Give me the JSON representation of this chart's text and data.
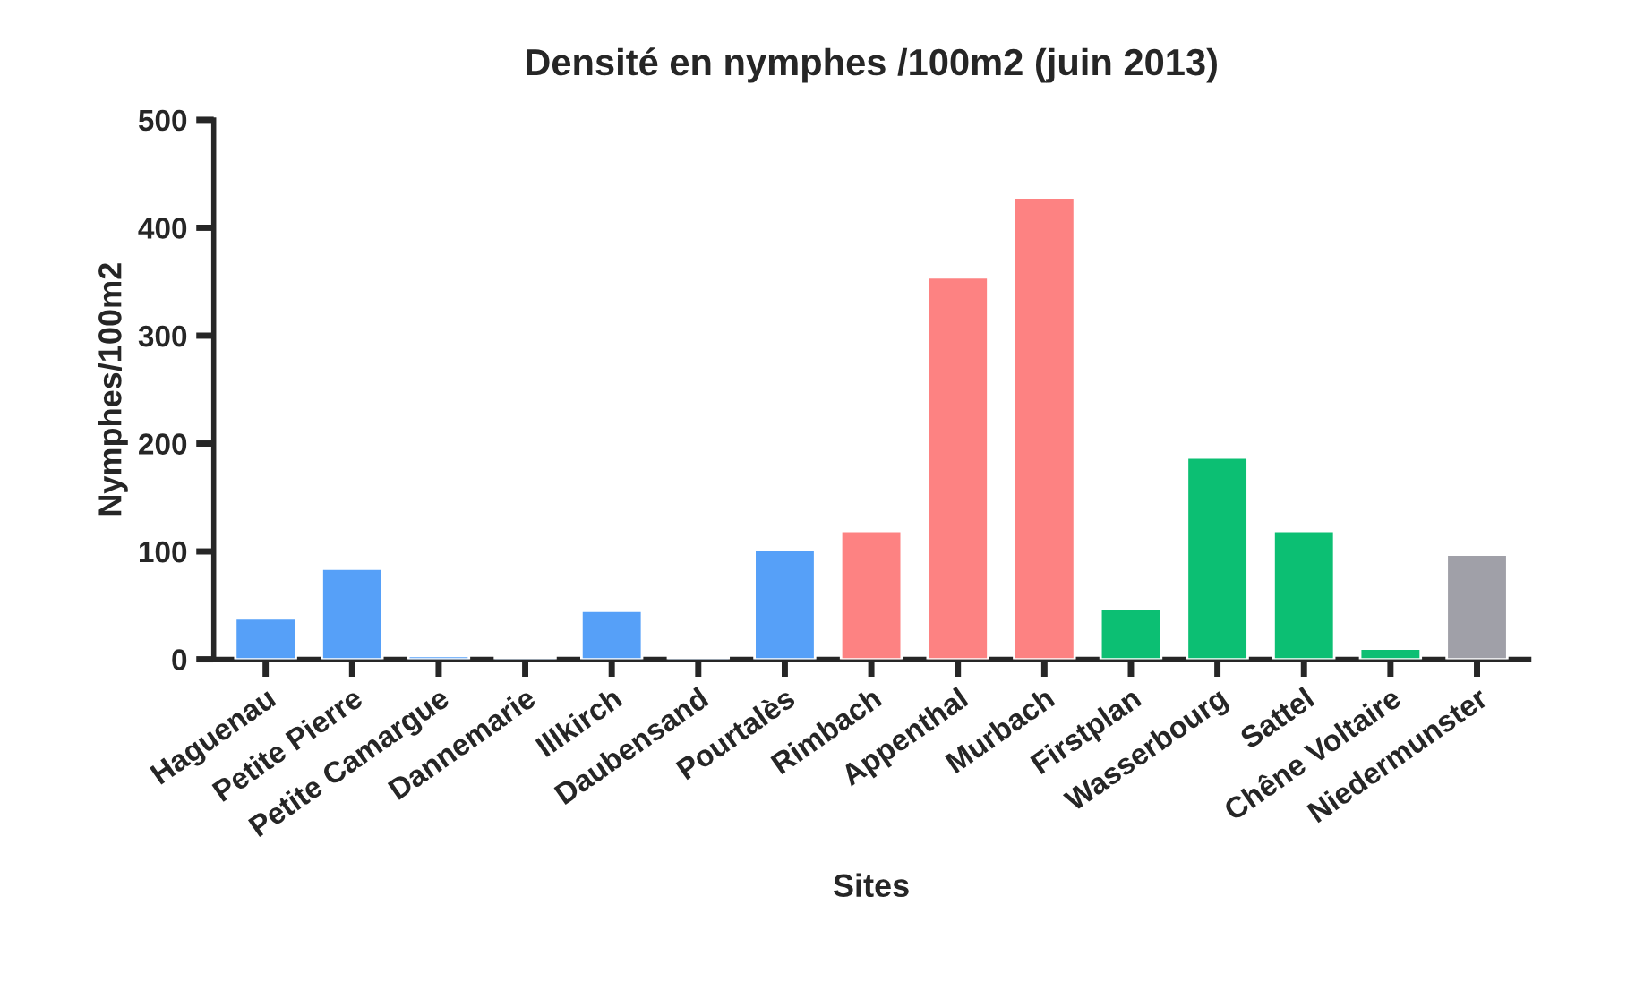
{
  "chart_data": {
    "type": "bar",
    "title": "Densité en nymphes /100m2 (juin 2013)",
    "xlabel": "Sites",
    "ylabel": "Nymphes/100m2",
    "categories": [
      "Haguenau",
      "Petite Pierre",
      "Petite Camargue",
      "Dannemarie",
      "Illkirch",
      "Daubensand",
      "Pourtalès",
      "Rimbach",
      "Appenthal",
      "Murbach",
      "Firstplan",
      "Wasserbourg",
      "Sattel",
      "Chêne Voltaire",
      "Niedermunster"
    ],
    "values": [
      38,
      84,
      3,
      2,
      45,
      2,
      102,
      119,
      354,
      428,
      47,
      187,
      119,
      10,
      97
    ],
    "colors": [
      "#56a0f8",
      "#56a0f8",
      "#56a0f8",
      "#56a0f8",
      "#56a0f8",
      "#56a0f8",
      "#56a0f8",
      "#fd8282",
      "#fd8282",
      "#fd8282",
      "#0cbf73",
      "#0cbf73",
      "#0cbf73",
      "#0cbf73",
      "#a0a0a8"
    ],
    "ylim": [
      0,
      500
    ],
    "yticks": [
      0,
      100,
      200,
      300,
      400,
      500
    ],
    "grid": false,
    "legend": false
  }
}
